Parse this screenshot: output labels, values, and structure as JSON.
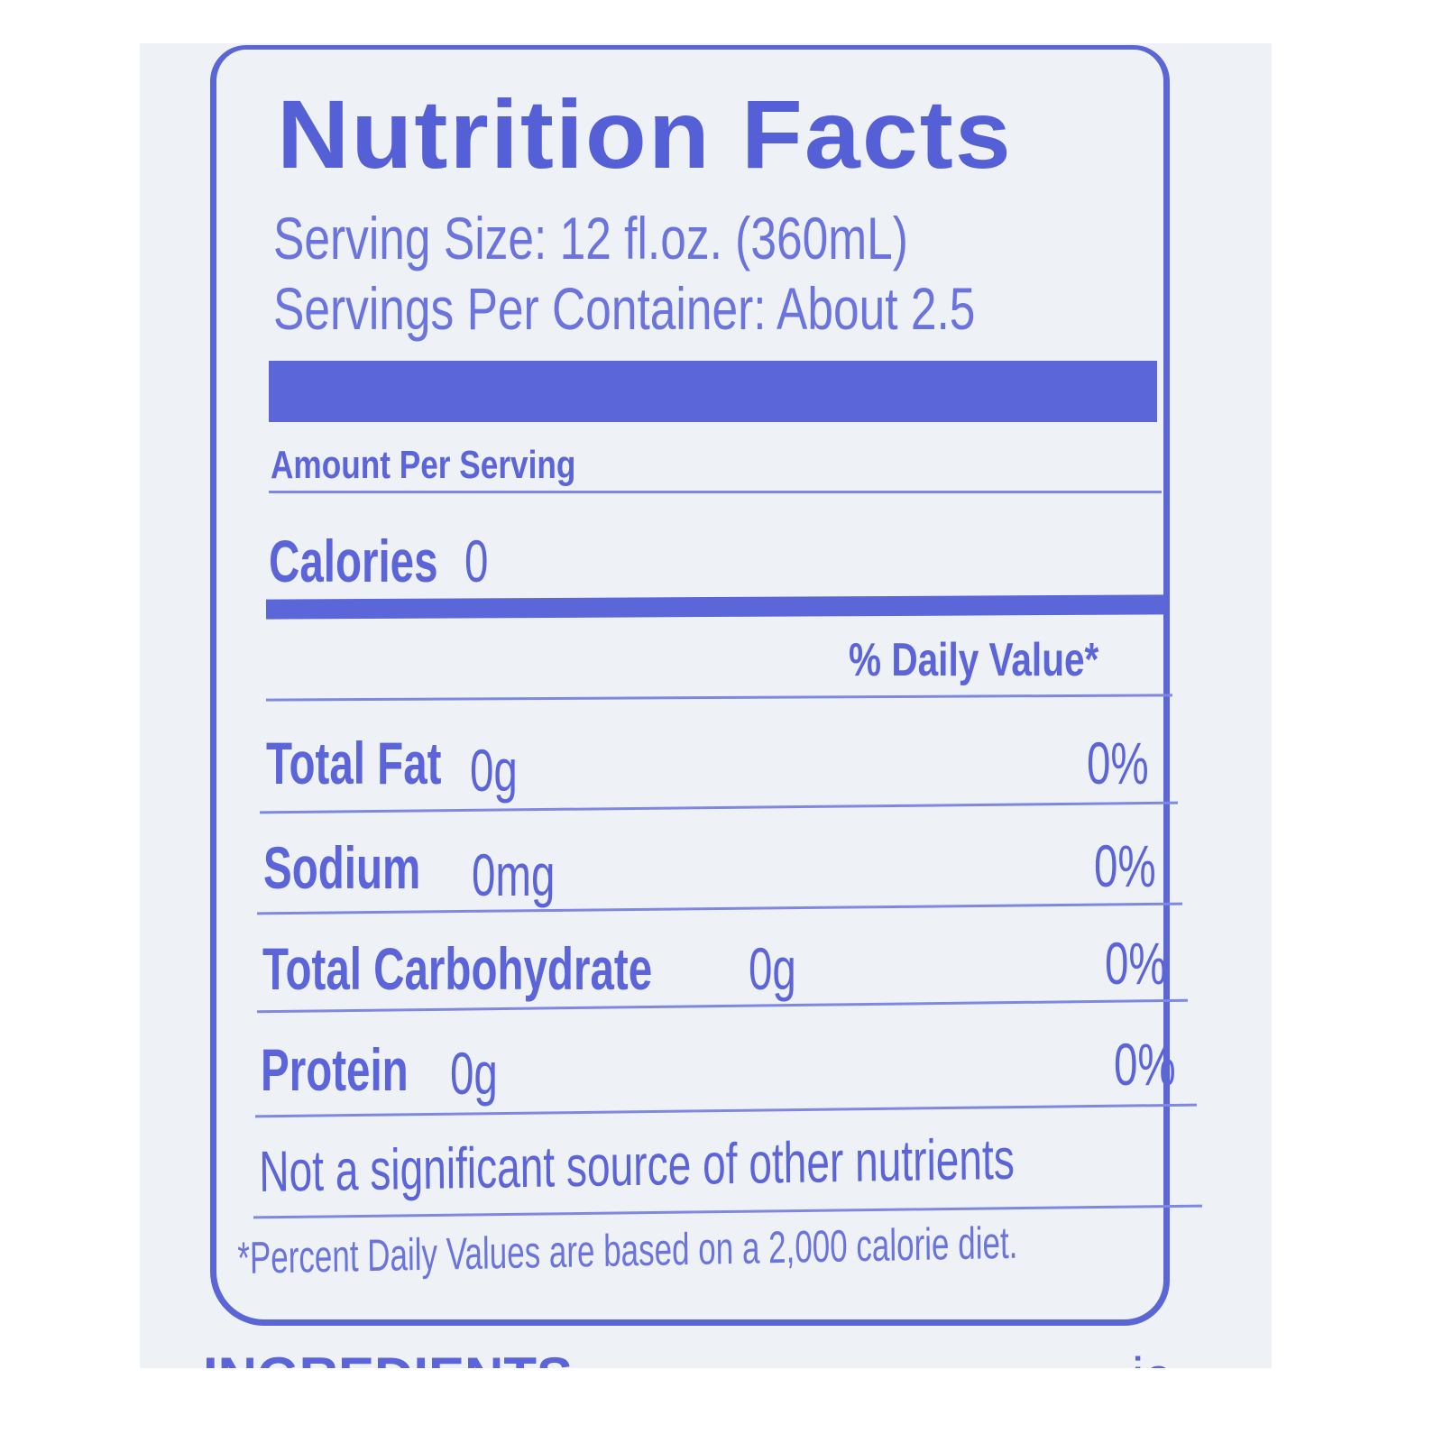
{
  "label": {
    "title": "Nutrition Facts",
    "serving_size": "Serving Size: 12 fl.oz. (360mL)",
    "servings_per_container": "Servings Per Container: About 2.5",
    "amount_per_serving": "Amount Per Serving",
    "calories_label": "Calories",
    "calories_value": "0",
    "daily_value_header": "% Daily Value*",
    "nutrients": [
      {
        "name": "Total Fat",
        "amount": "0g",
        "dv": "0%"
      },
      {
        "name": "Sodium",
        "amount": "0mg",
        "dv": "0%"
      },
      {
        "name": "Total Carbohydrate",
        "amount": "0g",
        "dv": "0%"
      },
      {
        "name": "Protein",
        "amount": "0g",
        "dv": "0%"
      }
    ],
    "note": "Not a significant source of other nutrients",
    "footnote": "*Percent Daily Values are based on a 2,000 calorie diet.",
    "ink_color": "#5b64d8"
  },
  "below_label": {
    "ingredients_heading": "INGREDIENTS",
    "ingredients_partial": "ic water"
  }
}
